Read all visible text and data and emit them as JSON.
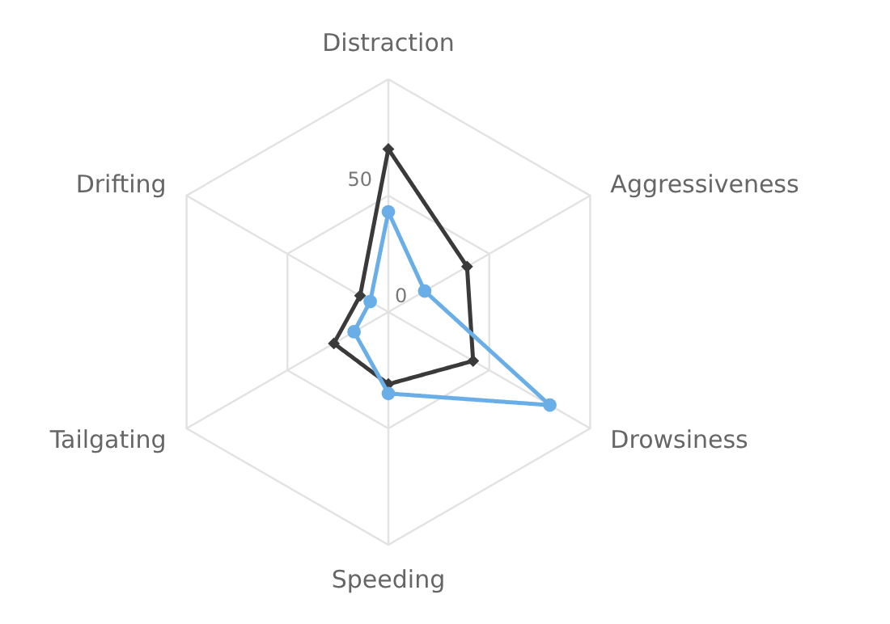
{
  "chart_data": {
    "type": "radar",
    "categories": [
      "Distraction",
      "Aggressiveness",
      "Drowsiness",
      "Speeding",
      "Tailgating",
      "Drifting"
    ],
    "series": [
      {
        "color": "#3a3a3a",
        "marker": "diamond",
        "values": [
          70,
          39,
          42,
          31,
          27,
          14
        ]
      },
      {
        "color": "#6aaee8",
        "marker": "circle",
        "values": [
          43,
          18,
          80,
          35,
          17,
          9
        ]
      }
    ],
    "ylim": [
      0,
      100
    ],
    "yticks": [
      0,
      50
    ],
    "grid": true
  }
}
